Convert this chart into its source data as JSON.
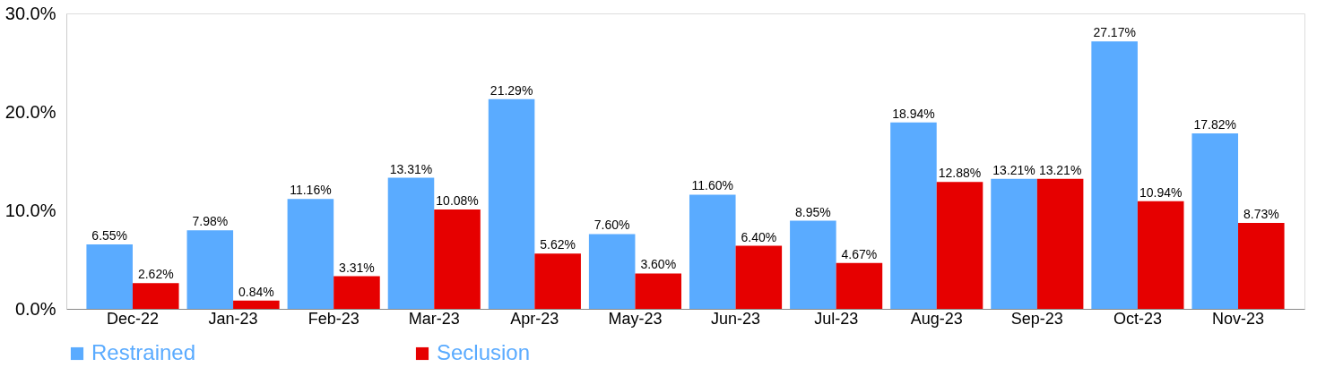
{
  "chart_data": {
    "type": "bar",
    "categories": [
      "Dec-22",
      "Jan-23",
      "Feb-23",
      "Mar-23",
      "Apr-23",
      "May-23",
      "Jun-23",
      "Jul-23",
      "Aug-23",
      "Sep-23",
      "Oct-23",
      "Nov-23"
    ],
    "series": [
      {
        "name": "Restrained",
        "color": "#5aabff",
        "values": [
          6.55,
          7.98,
          11.16,
          13.31,
          21.29,
          7.6,
          11.6,
          8.95,
          18.94,
          13.21,
          27.17,
          17.82
        ],
        "value_labels": [
          "6.55%",
          "7.98%",
          "11.16%",
          "13.31%",
          "21.29%",
          "7.60%",
          "11.60%",
          "8.95%",
          "18.94%",
          "13.21%",
          "27.17%",
          "17.82%"
        ]
      },
      {
        "name": "Seclusion",
        "color": "#e60000",
        "values": [
          2.62,
          0.84,
          3.31,
          10.08,
          5.62,
          3.6,
          6.4,
          4.67,
          12.88,
          13.21,
          10.94,
          8.73
        ],
        "value_labels": [
          "2.62%",
          "0.84%",
          "3.31%",
          "10.08%",
          "5.62%",
          "3.60%",
          "6.40%",
          "4.67%",
          "12.88%",
          "13.21%",
          "10.94%",
          "8.73%"
        ]
      }
    ],
    "ylim": [
      0,
      30
    ],
    "yticks": [
      {
        "value": 0,
        "label": "0.0%"
      },
      {
        "value": 10,
        "label": "10.0%"
      },
      {
        "value": 20,
        "label": "20.0%"
      },
      {
        "value": 30,
        "label": "30.0%"
      }
    ],
    "grid": false,
    "legend": "bottom"
  }
}
